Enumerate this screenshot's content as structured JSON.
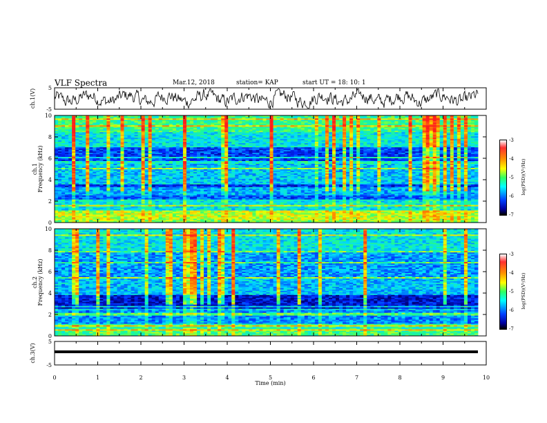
{
  "header": {
    "title": "VLF Spectra",
    "date": "Mar.12, 2018",
    "station": "station= KAP",
    "start": "start  UT  =   18: 10: 1"
  },
  "colorbar": {
    "ticks": [
      "-3",
      "-4",
      "-5",
      "-6",
      "-7"
    ],
    "label": "log(PSD)(V²/Hz)",
    "colors": [
      "#ffffff",
      "#ff3030",
      "#ff9000",
      "#ffff00",
      "#30ff60",
      "#00ffff",
      "#0040ff",
      "#0000a0",
      "#000000"
    ]
  },
  "chart_data": [
    {
      "type": "line",
      "panel": "ch1-waveform",
      "ylabel": "ch.1(V)",
      "ylim": [
        -5,
        5
      ],
      "yticks": [
        "5",
        "-5"
      ],
      "xlim": [
        0,
        10
      ],
      "description_of_series": "noisy waveform oscillating around 0 V"
    },
    {
      "type": "heatmap",
      "panel": "ch1-spectrogram",
      "ylabel_top": "ch.1",
      "ylabel": "Frequency (kHz)",
      "ylim": [
        0,
        10
      ],
      "yticks": [
        "0",
        "2",
        "4",
        "6",
        "8",
        "10"
      ],
      "xlim": [
        0,
        10
      ],
      "clim": [
        -7,
        -3
      ]
    },
    {
      "type": "heatmap",
      "panel": "ch2-spectrogram",
      "ylabel_top": "ch.2",
      "ylabel": "Frequency (kHz)",
      "ylim": [
        0,
        10
      ],
      "yticks": [
        "0",
        "2",
        "4",
        "6",
        "8",
        "10"
      ],
      "xlim": [
        0,
        10
      ],
      "clim": [
        -7,
        -3
      ]
    },
    {
      "type": "line",
      "panel": "ch3-waveform",
      "ylabel": "ch.3(V)",
      "ylim": [
        -5,
        5
      ],
      "yticks": [
        "5",
        "-5"
      ],
      "xlim": [
        0,
        10
      ],
      "xlabel": "Time (min)",
      "xticks": [
        "0",
        "1",
        "2",
        "3",
        "4",
        "5",
        "6",
        "7",
        "8",
        "9",
        "10"
      ]
    }
  ]
}
